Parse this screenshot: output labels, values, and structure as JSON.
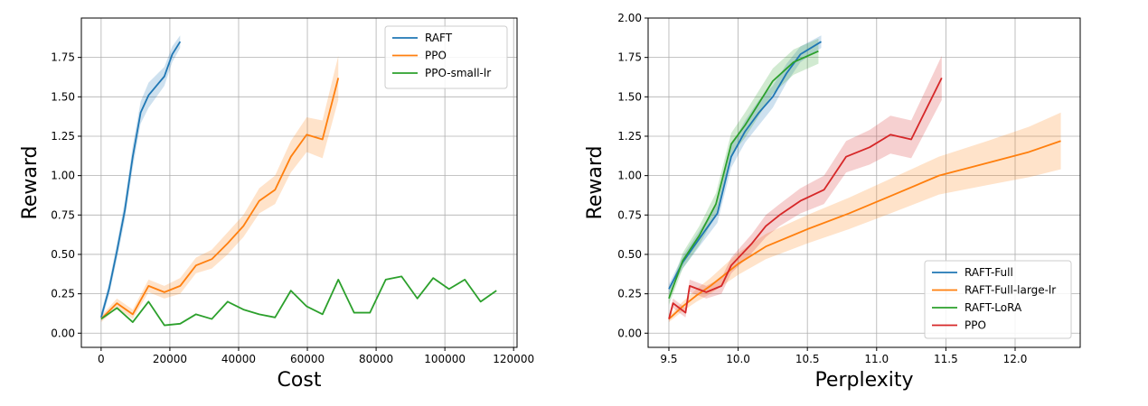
{
  "chart_data": [
    {
      "type": "line",
      "xlabel": "Cost",
      "ylabel": "Reward",
      "xlim": [
        -5750,
        121000
      ],
      "ylim": [
        -0.09,
        2.0
      ],
      "xticks": [
        0,
        20000,
        40000,
        60000,
        80000,
        100000,
        120000
      ],
      "xtick_labels": [
        "0",
        "20000",
        "40000",
        "60000",
        "80000",
        "100000",
        "120000"
      ],
      "yticks": [
        0.0,
        0.25,
        0.5,
        0.75,
        1.0,
        1.25,
        1.5,
        1.75
      ],
      "ytick_labels": [
        "0.00",
        "0.25",
        "0.50",
        "0.75",
        "1.00",
        "1.25",
        "1.50",
        "1.75"
      ],
      "grid": true,
      "legend_position": "top-right",
      "series": [
        {
          "name": "RAFT",
          "color": "#1f77b4",
          "x": [
            0,
            2300,
            4600,
            6900,
            9200,
            11500,
            13800,
            16100,
            18400,
            20700,
            23000
          ],
          "y": [
            0.1,
            0.28,
            0.52,
            0.78,
            1.12,
            1.4,
            1.51,
            1.57,
            1.63,
            1.77,
            1.85
          ],
          "band": [
            0.03,
            0.04,
            0.05,
            0.06,
            0.07,
            0.07,
            0.08,
            0.07,
            0.06,
            0.05,
            0.04
          ]
        },
        {
          "name": "PPO",
          "color": "#ff7f0e",
          "x": [
            0,
            4600,
            9200,
            13800,
            18400,
            23000,
            27600,
            32200,
            36800,
            41400,
            46000,
            50600,
            55200,
            59800,
            64400,
            69000
          ],
          "y": [
            0.09,
            0.19,
            0.12,
            0.3,
            0.26,
            0.3,
            0.43,
            0.47,
            0.57,
            0.68,
            0.84,
            0.91,
            1.12,
            1.26,
            1.23,
            1.62
          ],
          "band": [
            0.02,
            0.03,
            0.03,
            0.04,
            0.04,
            0.05,
            0.05,
            0.06,
            0.07,
            0.07,
            0.08,
            0.09,
            0.1,
            0.11,
            0.12,
            0.14
          ]
        },
        {
          "name": "PPO-small-lr",
          "color": "#2ca02c",
          "x": [
            0,
            4600,
            9200,
            13800,
            18400,
            23000,
            27600,
            32200,
            36800,
            41400,
            46000,
            50600,
            55200,
            59800,
            64400,
            69000,
            73600,
            78200,
            82800,
            87400,
            92000,
            96600,
            101200,
            105800,
            110400,
            115000
          ],
          "y": [
            0.09,
            0.16,
            0.07,
            0.2,
            0.05,
            0.06,
            0.12,
            0.09,
            0.2,
            0.15,
            0.12,
            0.1,
            0.27,
            0.17,
            0.12,
            0.34,
            0.13,
            0.13,
            0.34,
            0.36,
            0.22,
            0.35,
            0.28,
            0.34,
            0.2,
            0.27
          ]
        }
      ]
    },
    {
      "type": "line",
      "xlabel": "Perplexity",
      "ylabel": "Reward",
      "xlim": [
        9.35,
        12.47
      ],
      "ylim": [
        -0.09,
        2.0
      ],
      "xticks": [
        9.5,
        10.0,
        10.5,
        11.0,
        11.5,
        12.0
      ],
      "xtick_labels": [
        "9.5",
        "10.0",
        "10.5",
        "11.0",
        "11.5",
        "12.0"
      ],
      "yticks": [
        0.0,
        0.25,
        0.5,
        0.75,
        1.0,
        1.25,
        1.5,
        1.75,
        2.0
      ],
      "ytick_labels": [
        "0.00",
        "0.25",
        "0.50",
        "0.75",
        "1.00",
        "1.25",
        "1.50",
        "1.75",
        "2.00"
      ],
      "grid": true,
      "legend_position": "bottom-right",
      "series": [
        {
          "name": "RAFT-Full",
          "color": "#1f77b4",
          "x": [
            9.5,
            9.6,
            9.72,
            9.85,
            9.95,
            10.05,
            10.15,
            10.25,
            10.35,
            10.45,
            10.6
          ],
          "y": [
            0.28,
            0.45,
            0.6,
            0.76,
            1.12,
            1.28,
            1.4,
            1.5,
            1.65,
            1.77,
            1.85
          ],
          "band": [
            0.03,
            0.04,
            0.05,
            0.06,
            0.07,
            0.07,
            0.08,
            0.07,
            0.06,
            0.05,
            0.04
          ]
        },
        {
          "name": "RAFT-Full-large-lr",
          "color": "#ff7f0e",
          "x": [
            9.5,
            9.6,
            9.7,
            9.8,
            9.9,
            10.0,
            10.2,
            10.5,
            10.8,
            11.1,
            11.45,
            11.8,
            12.1,
            12.33
          ],
          "y": [
            0.09,
            0.17,
            0.24,
            0.3,
            0.37,
            0.44,
            0.55,
            0.66,
            0.76,
            0.87,
            1.0,
            1.08,
            1.15,
            1.22
          ],
          "band": [
            0.02,
            0.03,
            0.04,
            0.05,
            0.06,
            0.07,
            0.08,
            0.09,
            0.1,
            0.11,
            0.12,
            0.14,
            0.16,
            0.18
          ]
        },
        {
          "name": "RAFT-LoRA",
          "color": "#2ca02c",
          "x": [
            9.5,
            9.6,
            9.72,
            9.84,
            9.95,
            10.05,
            10.15,
            10.25,
            10.4,
            10.58
          ],
          "y": [
            0.22,
            0.46,
            0.62,
            0.82,
            1.2,
            1.32,
            1.46,
            1.6,
            1.72,
            1.79
          ],
          "band": [
            0.04,
            0.05,
            0.06,
            0.07,
            0.07,
            0.08,
            0.08,
            0.08,
            0.08,
            0.08
          ]
        },
        {
          "name": "PPO",
          "color": "#d62728",
          "x": [
            9.5,
            9.53,
            9.62,
            9.65,
            9.77,
            9.88,
            9.95,
            10.1,
            10.2,
            10.3,
            10.45,
            10.62,
            10.78,
            10.95,
            11.1,
            11.25,
            11.47
          ],
          "y": [
            0.09,
            0.19,
            0.13,
            0.3,
            0.26,
            0.3,
            0.43,
            0.57,
            0.68,
            0.75,
            0.84,
            0.91,
            1.12,
            1.18,
            1.26,
            1.23,
            1.62
          ],
          "band": [
            0.02,
            0.03,
            0.03,
            0.04,
            0.04,
            0.05,
            0.05,
            0.06,
            0.07,
            0.07,
            0.08,
            0.09,
            0.1,
            0.11,
            0.12,
            0.12,
            0.14
          ]
        }
      ]
    }
  ]
}
